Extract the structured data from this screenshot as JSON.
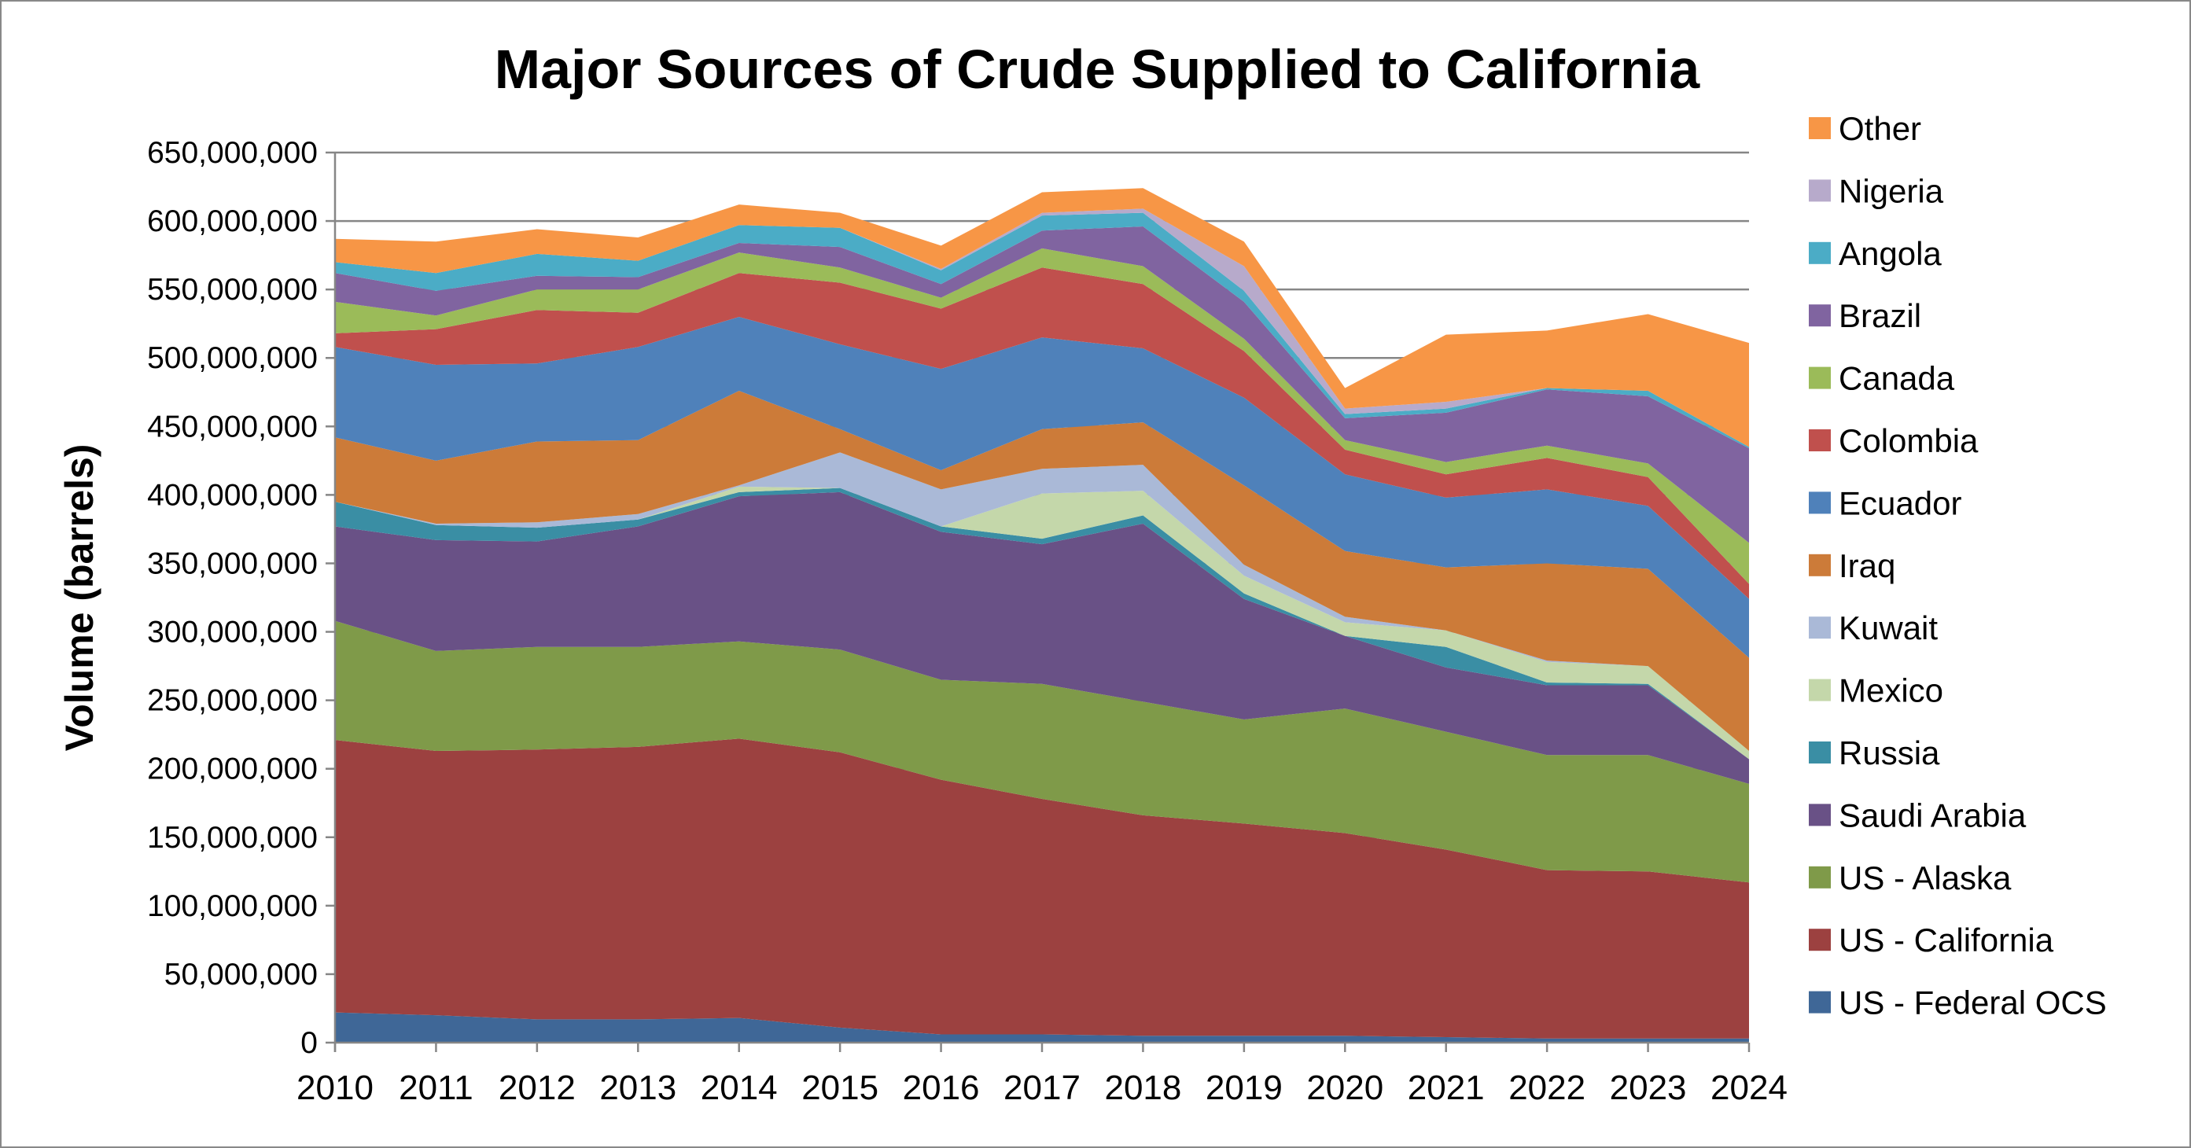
{
  "chart_data": {
    "type": "area",
    "stacked": true,
    "title": "Major Sources of Crude Supplied to California",
    "xlabel": "",
    "ylabel": "Volume (barrels)",
    "ylim": [
      0,
      650000000
    ],
    "y_ticks": [
      "0",
      "50,000,000",
      "100,000,000",
      "150,000,000",
      "200,000,000",
      "250,000,000",
      "300,000,000",
      "350,000,000",
      "400,000,000",
      "450,000,000",
      "500,000,000",
      "550,000,000",
      "600,000,000",
      "650,000,000"
    ],
    "y_tick_values": [
      0,
      50000000,
      100000000,
      150000000,
      200000000,
      250000000,
      300000000,
      350000000,
      400000000,
      450000000,
      500000000,
      550000000,
      600000000,
      650000000
    ],
    "grid": true,
    "legend_placement": "right",
    "categories": [
      "2010",
      "2011",
      "2012",
      "2013",
      "2014",
      "2015",
      "2016",
      "2017",
      "2018",
      "2019",
      "2020",
      "2021",
      "2022",
      "2023",
      "2024"
    ],
    "series": [
      {
        "name": "US - Federal OCS",
        "color": "#3F6797",
        "values": [
          22000000,
          20000000,
          17000000,
          17000000,
          18000000,
          11000000,
          6000000,
          6000000,
          5000000,
          5000000,
          5000000,
          4000000,
          3000000,
          3000000,
          3000000
        ]
      },
      {
        "name": "US - California",
        "color": "#9C4140",
        "values": [
          199000000,
          193000000,
          197000000,
          199000000,
          204000000,
          201000000,
          186000000,
          172000000,
          161000000,
          155000000,
          148000000,
          137000000,
          123000000,
          122000000,
          114000000
        ]
      },
      {
        "name": "US - Alaska",
        "color": "#7F9A49",
        "values": [
          87000000,
          73000000,
          75000000,
          73000000,
          71000000,
          75000000,
          73000000,
          84000000,
          83000000,
          76000000,
          91000000,
          86000000,
          84000000,
          85000000,
          72000000
        ]
      },
      {
        "name": "Saudi Arabia",
        "color": "#695186",
        "values": [
          69000000,
          81000000,
          77000000,
          88000000,
          106000000,
          115000000,
          108000000,
          102000000,
          130000000,
          88000000,
          53000000,
          47000000,
          51000000,
          51000000,
          18000000
        ]
      },
      {
        "name": "Russia",
        "color": "#3A8EA4",
        "values": [
          18000000,
          11000000,
          10000000,
          5000000,
          3000000,
          3000000,
          4000000,
          4000000,
          6000000,
          4000000,
          0,
          15000000,
          2000000,
          1000000,
          0
        ]
      },
      {
        "name": "Mexico",
        "color": "#C4D7AA",
        "values": [
          0,
          0,
          0,
          0,
          4000000,
          0,
          0,
          33000000,
          18000000,
          13000000,
          10000000,
          12000000,
          15000000,
          13000000,
          6000000
        ]
      },
      {
        "name": "Kuwait",
        "color": "#AAB9D7",
        "values": [
          0,
          1000000,
          4000000,
          4000000,
          1000000,
          26000000,
          27000000,
          18000000,
          19000000,
          8000000,
          4000000,
          0,
          1000000,
          0,
          0
        ]
      },
      {
        "name": "Iraq",
        "color": "#CC7B39",
        "values": [
          47000000,
          46000000,
          59000000,
          54000000,
          69000000,
          17000000,
          14000000,
          29000000,
          31000000,
          58000000,
          48000000,
          46000000,
          71000000,
          71000000,
          68000000
        ]
      },
      {
        "name": "Ecuador",
        "color": "#4F81BA",
        "values": [
          66000000,
          70000000,
          57000000,
          68000000,
          54000000,
          62000000,
          74000000,
          67000000,
          54000000,
          64000000,
          56000000,
          51000000,
          54000000,
          46000000,
          43000000
        ]
      },
      {
        "name": "Colombia",
        "color": "#C0504D",
        "values": [
          10000000,
          26000000,
          39000000,
          25000000,
          32000000,
          45000000,
          44000000,
          51000000,
          47000000,
          34000000,
          18000000,
          17000000,
          23000000,
          21000000,
          11000000
        ]
      },
      {
        "name": "Canada",
        "color": "#9BBB59",
        "values": [
          23000000,
          10000000,
          15000000,
          17000000,
          15000000,
          11000000,
          8000000,
          14000000,
          13000000,
          9000000,
          7000000,
          9000000,
          9000000,
          10000000,
          30000000
        ]
      },
      {
        "name": "Brazil",
        "color": "#8064A0",
        "values": [
          21000000,
          18000000,
          10000000,
          9000000,
          7000000,
          15000000,
          10000000,
          13000000,
          29000000,
          27000000,
          16000000,
          36000000,
          41000000,
          49000000,
          69000000
        ]
      },
      {
        "name": "Angola",
        "color": "#4BACC6",
        "values": [
          8000000,
          13000000,
          16000000,
          12000000,
          13000000,
          14000000,
          10000000,
          11000000,
          10000000,
          8000000,
          3000000,
          3000000,
          1000000,
          4000000,
          1000000
        ]
      },
      {
        "name": "Nigeria",
        "color": "#B7AACB",
        "values": [
          0,
          0,
          0,
          0,
          0,
          0,
          1000000,
          2000000,
          3000000,
          18000000,
          4000000,
          5000000,
          0,
          0,
          0
        ]
      },
      {
        "name": "Other",
        "color": "#F79646",
        "values": [
          17000000,
          23000000,
          18000000,
          17000000,
          15000000,
          11000000,
          17000000,
          15000000,
          15000000,
          18000000,
          15000000,
          49000000,
          42000000,
          56000000,
          76000000
        ]
      }
    ]
  }
}
